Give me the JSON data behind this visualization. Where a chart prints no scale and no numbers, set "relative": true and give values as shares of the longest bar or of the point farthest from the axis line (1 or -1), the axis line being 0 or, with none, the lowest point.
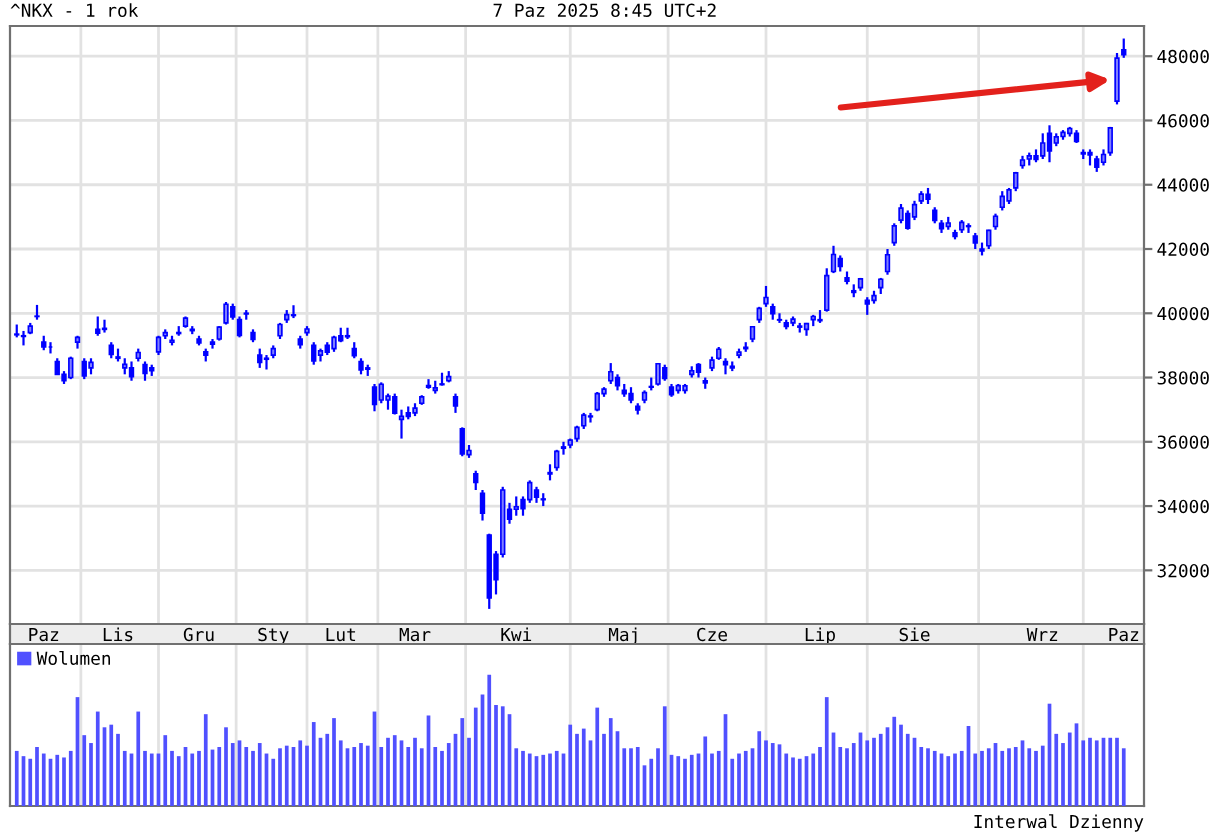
{
  "chart_data": [
    {
      "type": "candlestick",
      "title": "^NKX - 1 rok",
      "subtitle": "7 Paz 2025 8:45 UTC+2",
      "categories": [
        null,
        null,
        null,
        null,
        "Paz",
        null,
        null,
        null,
        null,
        null,
        null,
        null,
        null,
        null,
        null,
        "Lis",
        null,
        null,
        null,
        null,
        null,
        null,
        null,
        null,
        null,
        null,
        null,
        "Gru",
        null,
        null,
        null,
        null,
        null,
        null,
        null,
        null,
        null,
        null,
        "Sty",
        null,
        null,
        null,
        null,
        null,
        null,
        null,
        null,
        null,
        "Lut",
        null,
        null,
        null,
        null,
        null,
        null,
        null,
        null,
        null,
        null,
        "Mar",
        null,
        null,
        null,
        null,
        null,
        null,
        null,
        null,
        null,
        null,
        null,
        null,
        null,
        null,
        "Kwi",
        null,
        null,
        null,
        null,
        null,
        null,
        null,
        null,
        null,
        null,
        null,
        null,
        null,
        null,
        null,
        "Maj",
        null,
        null,
        null,
        null,
        null,
        null,
        null,
        null,
        null,
        null,
        null,
        null,
        "Cze",
        null,
        null,
        null,
        null,
        null,
        null,
        null,
        null,
        null,
        null,
        null,
        null,
        null,
        null,
        null,
        "Lip",
        null,
        null,
        null,
        null,
        null,
        null,
        null,
        null,
        null,
        null,
        null,
        null,
        null,
        "Sie",
        null,
        null,
        null,
        null,
        null,
        null,
        null,
        null,
        null,
        null,
        null,
        null,
        null,
        null,
        null,
        null,
        null,
        null,
        "Wrz",
        null,
        null,
        null,
        null,
        null,
        null,
        null,
        null,
        null,
        null,
        null,
        "Paz"
      ],
      "series": [
        {
          "type": "candlestick",
          "color": "#0000ff",
          "ohlc": [
            [
              39350,
              39650,
              39250,
              39330
            ],
            [
              39300,
              39450,
              39000,
              39280
            ],
            [
              39400,
              39700,
              39350,
              39600
            ],
            [
              39900,
              40260,
              39800,
              39910
            ],
            [
              39100,
              39300,
              38850,
              38950
            ],
            [
              38950,
              39100,
              38750,
              38950
            ],
            [
              38500,
              38600,
              38100,
              38100
            ],
            [
              38100,
              38200,
              37800,
              37900
            ],
            [
              38000,
              38650,
              37950,
              38600
            ],
            [
              39100,
              39300,
              38900,
              39250
            ],
            [
              38500,
              38600,
              37950,
              38050
            ],
            [
              38300,
              38600,
              38100,
              38470
            ],
            [
              39500,
              39900,
              39300,
              39380
            ],
            [
              39500,
              39800,
              39400,
              39530
            ],
            [
              39000,
              39100,
              38600,
              38720
            ],
            [
              38600,
              38900,
              38500,
              38640
            ],
            [
              38300,
              38600,
              38100,
              38410
            ],
            [
              38300,
              38500,
              37900,
              38030
            ],
            [
              38600,
              38900,
              38500,
              38780
            ],
            [
              38400,
              38500,
              37900,
              38130
            ],
            [
              38300,
              38400,
              38050,
              38210
            ],
            [
              38800,
              39300,
              38700,
              39250
            ],
            [
              39300,
              39500,
              39200,
              39400
            ],
            [
              39100,
              39300,
              39000,
              39160
            ],
            [
              39400,
              39600,
              39300,
              39370
            ],
            [
              39600,
              39900,
              39550,
              39850
            ],
            [
              39500,
              39600,
              39350,
              39460
            ],
            [
              39200,
              39300,
              39000,
              39080
            ],
            [
              38800,
              38900,
              38500,
              38700
            ],
            [
              39100,
              39200,
              38900,
              39040
            ],
            [
              39200,
              39600,
              39150,
              39570
            ],
            [
              39700,
              40350,
              39650,
              40280
            ],
            [
              40200,
              40300,
              39800,
              39890
            ],
            [
              39800,
              39900,
              39250,
              39310
            ],
            [
              40000,
              40100,
              39800,
              39980
            ],
            [
              39400,
              39500,
              39100,
              39190
            ],
            [
              38700,
              38900,
              38300,
              38470
            ],
            [
              38600,
              38700,
              38250,
              38570
            ],
            [
              38700,
              39000,
              38600,
              38900
            ],
            [
              39300,
              39700,
              39200,
              39650
            ],
            [
              39800,
              40100,
              39700,
              39960
            ],
            [
              39950,
              40250,
              39850,
              39930
            ],
            [
              39200,
              39300,
              38900,
              39020
            ],
            [
              39400,
              39600,
              39300,
              39510
            ],
            [
              39000,
              39100,
              38400,
              38520
            ],
            [
              38700,
              38900,
              38500,
              38830
            ],
            [
              39000,
              39100,
              38700,
              38790
            ],
            [
              38900,
              39300,
              38800,
              39250
            ],
            [
              39300,
              39550,
              39100,
              39150
            ],
            [
              39300,
              39550,
              39200,
              39270
            ],
            [
              38900,
              39100,
              38600,
              38680
            ],
            [
              38500,
              38600,
              38100,
              38240
            ],
            [
              38300,
              38400,
              38050,
              38260
            ],
            [
              37700,
              37800,
              36950,
              37160
            ],
            [
              37300,
              37850,
              37200,
              37790
            ],
            [
              37300,
              37500,
              37000,
              37420
            ],
            [
              37400,
              37500,
              36850,
              36890
            ],
            [
              36700,
              37000,
              36100,
              36790
            ],
            [
              36900,
              37100,
              36700,
              36790
            ],
            [
              36900,
              37200,
              36800,
              37050
            ],
            [
              37200,
              37450,
              37150,
              37400
            ],
            [
              37700,
              37950,
              37650,
              37750
            ],
            [
              37600,
              37900,
              37500,
              37680
            ],
            [
              37800,
              38150,
              37750,
              37780
            ],
            [
              37900,
              38200,
              37850,
              38030
            ],
            [
              37400,
              37500,
              36900,
              37120
            ],
            [
              36400,
              36450,
              35550,
              35620
            ],
            [
              35600,
              35900,
              35500,
              35730
            ],
            [
              35000,
              35100,
              34500,
              34740
            ],
            [
              34400,
              34500,
              33550,
              33780
            ],
            [
              33100,
              33140,
              30800,
              31140
            ],
            [
              32500,
              32600,
              31250,
              31710
            ],
            [
              32500,
              34600,
              32400,
              34500
            ],
            [
              33900,
              34100,
              33450,
              33590
            ],
            [
              33900,
              34300,
              33700,
              33980
            ],
            [
              34200,
              34300,
              33700,
              33920
            ],
            [
              34200,
              34800,
              34100,
              34730
            ],
            [
              34500,
              34600,
              34100,
              34280
            ],
            [
              34200,
              34400,
              34000,
              34220
            ],
            [
              35000,
              35300,
              34800,
              35040
            ],
            [
              35200,
              35750,
              35100,
              35700
            ],
            [
              35800,
              36000,
              35600,
              35840
            ],
            [
              35900,
              36100,
              35800,
              36050
            ],
            [
              36100,
              36500,
              36000,
              36450
            ],
            [
              36500,
              36900,
              36400,
              36830
            ],
            [
              36800,
              36900,
              36600,
              36780
            ],
            [
              37000,
              37550,
              36950,
              37500
            ],
            [
              37500,
              37700,
              37400,
              37640
            ],
            [
              37900,
              38450,
              37800,
              38180
            ],
            [
              38000,
              38100,
              37600,
              37750
            ],
            [
              37600,
              37800,
              37400,
              37500
            ],
            [
              37500,
              37700,
              37200,
              37300
            ],
            [
              37100,
              37200,
              36850,
              36990
            ],
            [
              37300,
              37600,
              37200,
              37530
            ],
            [
              37700,
              38000,
              37600,
              37720
            ],
            [
              37800,
              38450,
              37750,
              38430
            ],
            [
              38300,
              38400,
              37900,
              37970
            ],
            [
              37700,
              37800,
              37400,
              37470
            ],
            [
              37600,
              37800,
              37500,
              37750
            ],
            [
              37600,
              37800,
              37500,
              37740
            ],
            [
              38100,
              38350,
              38000,
              38210
            ],
            [
              38400,
              38450,
              38000,
              38170
            ],
            [
              37900,
              38000,
              37650,
              37830
            ],
            [
              38300,
              38650,
              38200,
              38540
            ],
            [
              38600,
              38950,
              38550,
              38880
            ],
            [
              38500,
              38600,
              38100,
              38400
            ],
            [
              38300,
              38500,
              38200,
              38350
            ],
            [
              38700,
              38900,
              38600,
              38790
            ],
            [
              38900,
              39100,
              38800,
              38940
            ],
            [
              39200,
              39600,
              39100,
              39580
            ],
            [
              39800,
              40200,
              39700,
              40150
            ],
            [
              40300,
              40850,
              40200,
              40490
            ],
            [
              40200,
              40300,
              39800,
              39990
            ],
            [
              39800,
              40000,
              39700,
              39790
            ],
            [
              39700,
              39800,
              39500,
              39590
            ],
            [
              39700,
              39900,
              39600,
              39820
            ],
            [
              39600,
              39700,
              39400,
              39570
            ],
            [
              39500,
              39700,
              39300,
              39680
            ],
            [
              39800,
              39950,
              39600,
              39900
            ],
            [
              39800,
              40100,
              39700,
              39770
            ],
            [
              40100,
              41400,
              40050,
              41170
            ],
            [
              41300,
              42100,
              41250,
              41830
            ],
            [
              41700,
              41800,
              41300,
              41460
            ],
            [
              41100,
              41300,
              40900,
              41000
            ],
            [
              40700,
              40900,
              40500,
              40650
            ],
            [
              40800,
              41100,
              40700,
              41070
            ],
            [
              40400,
              40500,
              39950,
              40290
            ],
            [
              40400,
              40700,
              40300,
              40550
            ],
            [
              40800,
              41100,
              40600,
              41060
            ],
            [
              41300,
              42000,
              41200,
              41820
            ],
            [
              42200,
              42800,
              42100,
              42720
            ],
            [
              42900,
              43400,
              42800,
              43270
            ],
            [
              43100,
              43200,
              42600,
              42650
            ],
            [
              43000,
              43500,
              42900,
              43380
            ],
            [
              43500,
              43800,
              43400,
              43710
            ],
            [
              43700,
              43900,
              43400,
              43550
            ],
            [
              43200,
              43300,
              42800,
              42890
            ],
            [
              42800,
              42900,
              42500,
              42630
            ],
            [
              42700,
              43000,
              42600,
              42810
            ],
            [
              42500,
              42600,
              42300,
              42390
            ],
            [
              42600,
              42900,
              42500,
              42830
            ],
            [
              42700,
              42800,
              42500,
              42720
            ],
            [
              42400,
              42500,
              42000,
              42190
            ],
            [
              42000,
              42200,
              41800,
              41940
            ],
            [
              42100,
              42600,
              42000,
              42580
            ],
            [
              42700,
              43100,
              42600,
              43020
            ],
            [
              43300,
              43800,
              43200,
              43640
            ],
            [
              43500,
              43900,
              43400,
              43840
            ],
            [
              43900,
              44400,
              43800,
              44370
            ],
            [
              44600,
              44900,
              44500,
              44770
            ],
            [
              44800,
              45000,
              44600,
              44900
            ],
            [
              44900,
              45100,
              44700,
              44790
            ],
            [
              44900,
              45600,
              44800,
              45300
            ],
            [
              45600,
              45850,
              44700,
              45050
            ],
            [
              45300,
              45600,
              45200,
              45490
            ],
            [
              45500,
              45700,
              45400,
              45630
            ],
            [
              45600,
              45800,
              45500,
              45750
            ],
            [
              45600,
              45700,
              45300,
              45350
            ],
            [
              45000,
              45100,
              44800,
              44960
            ],
            [
              45000,
              45100,
              44600,
              44930
            ],
            [
              44800,
              44900,
              44400,
              44550
            ],
            [
              44700,
              45100,
              44600,
              44940
            ],
            [
              45000,
              45800,
              44900,
              45770
            ],
            [
              46600,
              48100,
              46500,
              47940
            ],
            [
              48200,
              48550,
              47950,
              48050
            ]
          ]
        }
      ],
      "ylim": [
        30330,
        48940
      ],
      "yticks": [
        32000,
        34000,
        36000,
        38000,
        40000,
        42000,
        44000,
        46000,
        48000
      ],
      "grid": true
    },
    {
      "type": "bar",
      "relative": true,
      "categories": [
        null,
        null,
        null,
        null,
        null,
        null,
        null,
        null,
        null,
        null,
        null,
        null,
        null,
        null,
        null,
        null,
        null,
        null,
        null,
        null,
        null,
        null,
        null,
        null,
        null,
        null,
        null,
        null,
        null,
        null,
        null,
        null,
        null,
        null,
        null,
        null,
        null,
        null,
        null,
        null,
        null,
        null,
        null,
        null,
        null,
        null,
        null,
        null,
        null,
        null,
        null,
        null,
        null,
        null,
        null,
        null,
        null,
        null,
        null,
        null,
        null,
        null,
        null,
        null,
        null,
        null,
        null,
        null,
        null,
        null,
        null,
        null,
        null,
        null,
        null,
        null,
        null,
        null,
        null,
        null,
        null,
        null,
        null,
        null,
        null,
        null,
        null,
        null,
        null,
        null,
        null,
        null,
        null,
        null,
        null,
        null,
        null,
        null,
        null,
        null,
        null,
        null,
        null,
        null,
        null,
        null,
        null,
        null,
        null,
        null,
        null,
        null,
        null,
        null,
        null,
        null,
        null,
        null,
        null,
        null,
        null,
        null,
        null,
        null,
        null,
        null,
        null,
        null,
        null,
        null,
        null,
        null,
        null,
        null,
        null,
        null,
        null,
        null,
        null,
        null,
        null,
        null,
        null,
        null,
        null,
        null,
        null,
        null,
        null,
        null,
        null,
        null,
        null,
        null,
        null,
        null,
        null,
        null,
        null,
        null,
        null,
        null,
        null,
        null,
        null
      ],
      "series": [
        {
          "name": "Wolumen",
          "color": "#5050ff",
          "values": [
            0.42,
            0.38,
            0.36,
            0.45,
            0.4,
            0.36,
            0.39,
            0.37,
            0.42,
            0.83,
            0.54,
            0.48,
            0.72,
            0.6,
            0.62,
            0.55,
            0.42,
            0.4,
            0.72,
            0.42,
            0.4,
            0.4,
            0.54,
            0.42,
            0.38,
            0.45,
            0.4,
            0.42,
            0.7,
            0.43,
            0.45,
            0.6,
            0.48,
            0.5,
            0.45,
            0.42,
            0.48,
            0.4,
            0.36,
            0.44,
            0.46,
            0.45,
            0.5,
            0.46,
            0.64,
            0.52,
            0.55,
            0.67,
            0.5,
            0.44,
            0.45,
            0.48,
            0.46,
            0.72,
            0.45,
            0.52,
            0.54,
            0.5,
            0.45,
            0.52,
            0.44,
            0.69,
            0.45,
            0.42,
            0.48,
            0.55,
            0.67,
            0.52,
            0.75,
            0.85,
            1.0,
            0.77,
            0.76,
            0.7,
            0.44,
            0.42,
            0.4,
            0.38,
            0.39,
            0.4,
            0.42,
            0.4,
            0.62,
            0.55,
            0.59,
            0.5,
            0.75,
            0.55,
            0.67,
            0.57,
            0.44,
            0.44,
            0.45,
            0.31,
            0.36,
            0.44,
            0.76,
            0.39,
            0.38,
            0.36,
            0.39,
            0.4,
            0.53,
            0.4,
            0.42,
            0.7,
            0.36,
            0.4,
            0.42,
            0.44,
            0.57,
            0.5,
            0.48,
            0.47,
            0.4,
            0.37,
            0.36,
            0.38,
            0.4,
            0.45,
            0.83,
            0.56,
            0.45,
            0.44,
            0.48,
            0.56,
            0.5,
            0.52,
            0.55,
            0.6,
            0.68,
            0.62,
            0.55,
            0.52,
            0.45,
            0.44,
            0.42,
            0.4,
            0.38,
            0.4,
            0.42,
            0.61,
            0.4,
            0.42,
            0.44,
            0.48,
            0.42,
            0.44,
            0.45,
            0.5,
            0.44,
            0.42,
            0.46,
            0.78,
            0.55,
            0.48,
            0.56,
            0.63,
            0.5,
            0.52,
            0.5,
            0.52,
            0.52,
            0.52,
            0.44
          ]
        }
      ],
      "grid": "x",
      "legend": "top left",
      "annotations": [
        "Interwal Dzienny"
      ]
    }
  ]
}
